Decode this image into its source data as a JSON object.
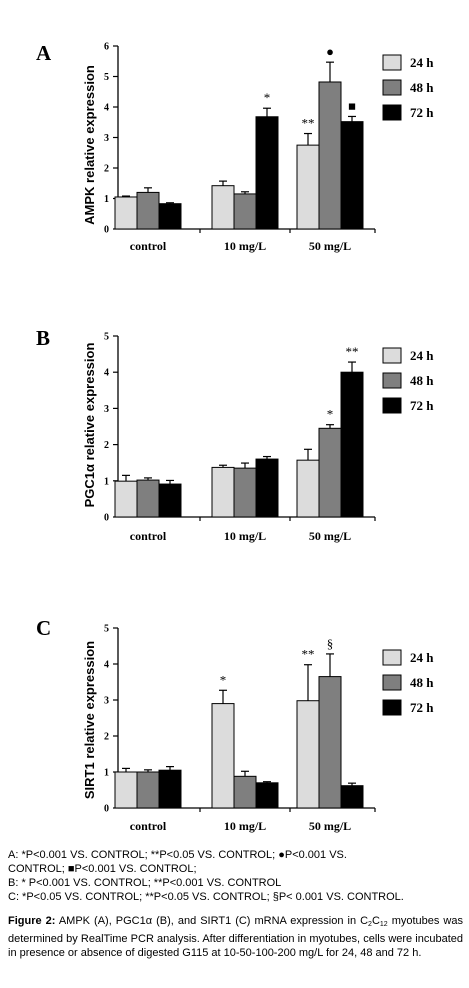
{
  "chart_data": [
    {
      "type": "bar",
      "panel": "A",
      "ylabel": "AMPK  relative expression",
      "ylim": [
        0,
        6
      ],
      "yticks": [
        "0",
        "1",
        "2",
        "3",
        "4",
        "5",
        "6"
      ],
      "categories": [
        "control",
        "10 mg/L",
        "50 mg/L"
      ],
      "series": [
        {
          "name": "24  h",
          "color": "#dcdcdc",
          "values": [
            1.05,
            1.42,
            2.75
          ],
          "errors": [
            0.03,
            0.15,
            0.38
          ]
        },
        {
          "name": "48 h",
          "color": "#7f7f7f",
          "values": [
            1.2,
            1.15,
            4.82
          ],
          "errors": [
            0.15,
            0.07,
            0.65
          ]
        },
        {
          "name": "72 h",
          "color": "#000000",
          "values": [
            0.83,
            3.68,
            3.52
          ],
          "errors": [
            0.03,
            0.28,
            0.17
          ]
        }
      ],
      "annotations": [
        {
          "category": 1,
          "series": 2,
          "text": "*"
        },
        {
          "category": 2,
          "series": 0,
          "text": "**"
        },
        {
          "category": 2,
          "series": 1,
          "text": "●"
        },
        {
          "category": 2,
          "series": 2,
          "text": "■"
        }
      ]
    },
    {
      "type": "bar",
      "panel": "B",
      "ylabel": "PGC1α  relative expression",
      "ylim": [
        0,
        5
      ],
      "yticks": [
        "0",
        "1",
        "2",
        "3",
        "4",
        "5"
      ],
      "categories": [
        "control",
        "10 mg/L",
        "50 mg/L"
      ],
      "series": [
        {
          "name": "24 h",
          "color": "#dcdcdc",
          "values": [
            0.99,
            1.37,
            1.57
          ],
          "errors": [
            0.16,
            0.06,
            0.3
          ]
        },
        {
          "name": "48 h",
          "color": "#7f7f7f",
          "values": [
            1.02,
            1.35,
            2.45
          ],
          "errors": [
            0.06,
            0.14,
            0.1
          ]
        },
        {
          "name": "72 h",
          "color": "#000000",
          "values": [
            0.91,
            1.6,
            4.0
          ],
          "errors": [
            0.1,
            0.07,
            0.28
          ]
        }
      ],
      "annotations": [
        {
          "category": 2,
          "series": 1,
          "text": "*"
        },
        {
          "category": 2,
          "series": 2,
          "text": "**"
        }
      ]
    },
    {
      "type": "bar",
      "panel": "C",
      "ylabel": "SIRT1 relative expression",
      "ylim": [
        0,
        5
      ],
      "yticks": [
        "0",
        "1",
        "2",
        "3",
        "4",
        "5"
      ],
      "categories": [
        "control",
        "10 mg/L",
        "50 mg/L"
      ],
      "series": [
        {
          "name": "24 h",
          "color": "#dcdcdc",
          "values": [
            1.0,
            2.9,
            2.98
          ],
          "errors": [
            0.1,
            0.37,
            1.0
          ]
        },
        {
          "name": "48 h",
          "color": "#7f7f7f",
          "values": [
            1.0,
            0.88,
            3.65
          ],
          "errors": [
            0.06,
            0.14,
            0.63
          ]
        },
        {
          "name": "72 h",
          "color": "#000000",
          "values": [
            1.05,
            0.7,
            0.62
          ],
          "errors": [
            0.1,
            0.03,
            0.07
          ]
        }
      ],
      "annotations": [
        {
          "category": 1,
          "series": 0,
          "text": "*"
        },
        {
          "category": 2,
          "series": 0,
          "text": "**"
        },
        {
          "category": 2,
          "series": 1,
          "text": "§"
        }
      ]
    }
  ],
  "notes": {
    "line_a1": "A:  *P<0.001  VS.  CONTROL;  **P<0.05  VS.  CONTROL;  ●P<0.001  VS.",
    "line_a2": "CONTROL; ■P<0.001 VS. CONTROL;",
    "line_b": "B: * P<0.001 VS. CONTROL; **P<0.001 VS. CONTROL",
    "line_c": "C: *P<0.05 VS. CONTROL; **P<0.05 VS. CONTROL; §P< 0.001 VS. CONTROL."
  },
  "caption": {
    "label": "Figure 2:",
    "part1": " AMPK (A), PGC1α (B), and SIRT1 (C) mRNA expression in C",
    "sub1": "2",
    "c": "C",
    "sub2": "12",
    "part2": " myotubes was determined by RealTime PCR analysis. After differentiation in myotubes, cells were incubated in presence or absence of digested G115 at 10-50-100-200 mg/L for 24, 48 and 72 h."
  }
}
